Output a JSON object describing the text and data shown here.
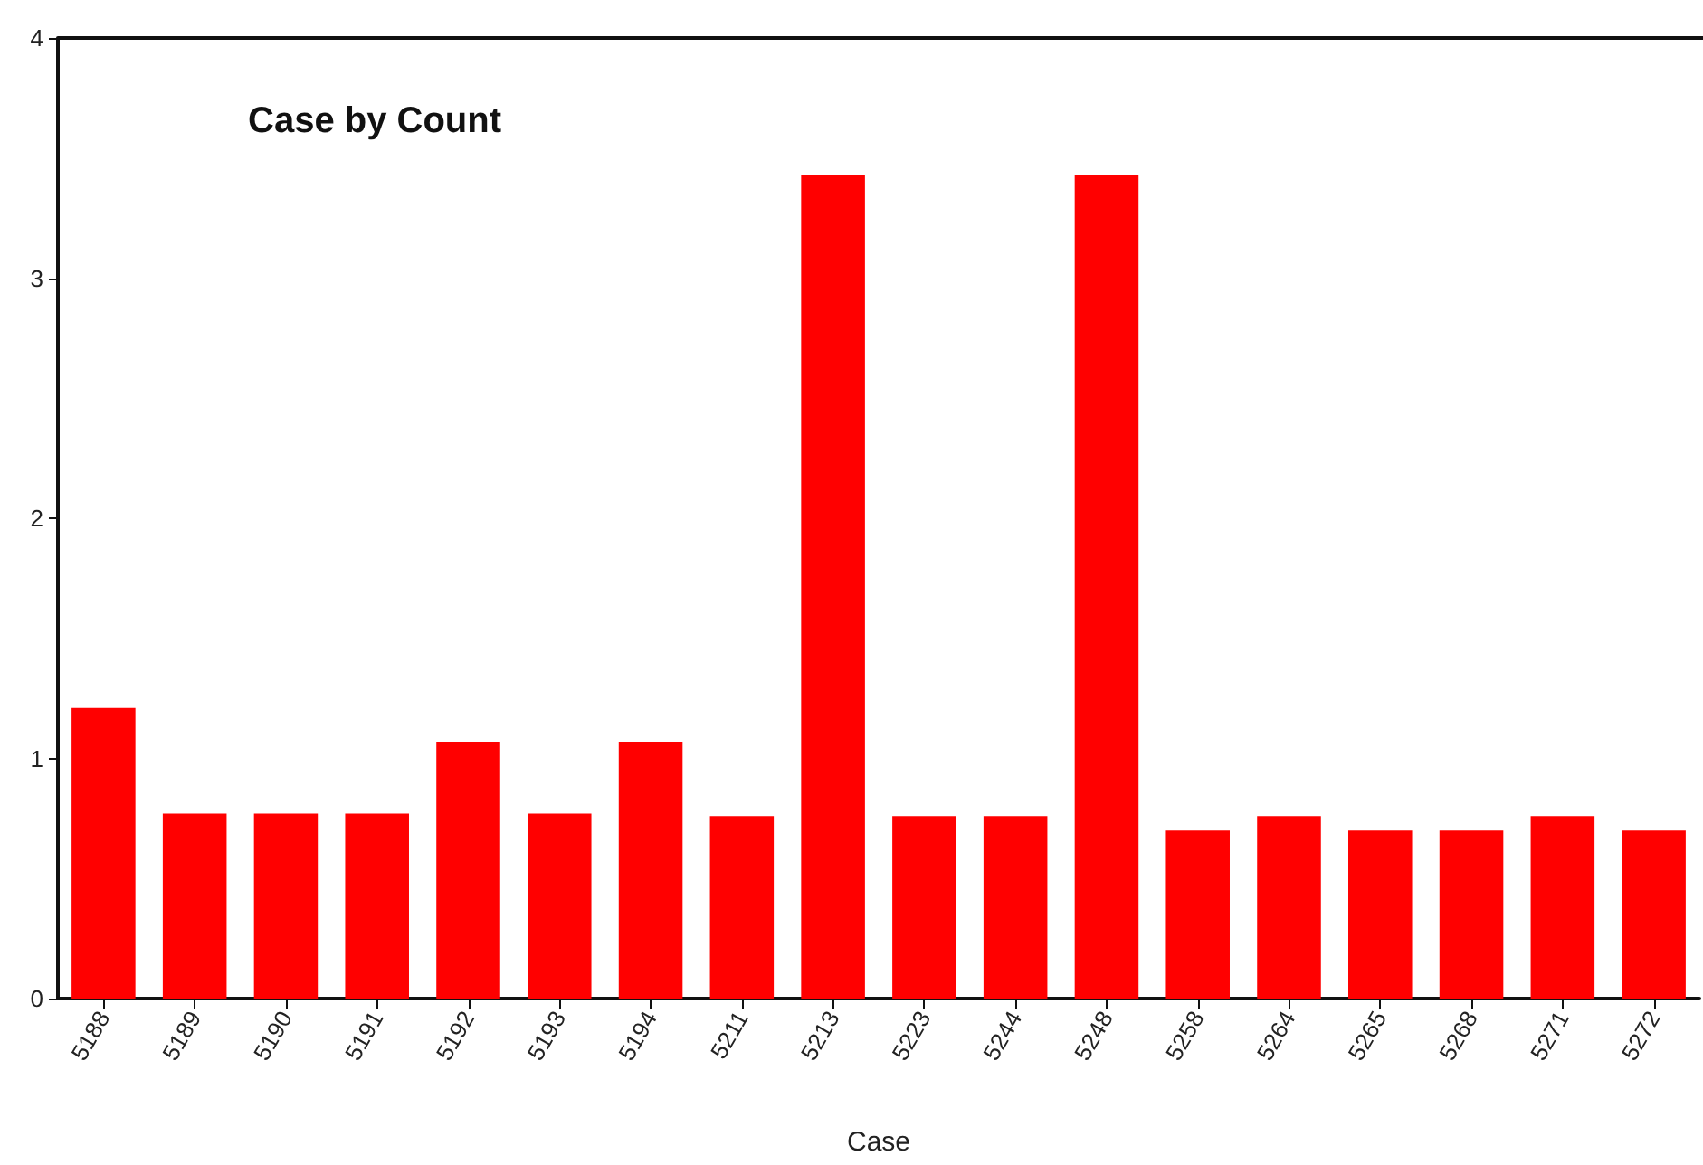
{
  "chart_data": {
    "type": "bar",
    "title": "Case by Count",
    "xlabel": "Case",
    "categories": [
      "5188",
      "5189",
      "5190",
      "5191",
      "5192",
      "5193",
      "5194",
      "5211",
      "5213",
      "5223",
      "5244",
      "5248",
      "5258",
      "5264",
      "5265",
      "5268",
      "5271",
      "5272"
    ],
    "values": [
      1.21,
      0.77,
      0.77,
      0.77,
      1.07,
      0.77,
      1.07,
      0.76,
      3.43,
      0.76,
      0.76,
      3.43,
      0.7,
      0.76,
      0.7,
      0.7,
      0.76,
      0.7
    ],
    "color": "#ff0000",
    "ylim": [
      0,
      4
    ],
    "yticks": [
      0,
      1,
      2,
      3,
      4
    ]
  }
}
